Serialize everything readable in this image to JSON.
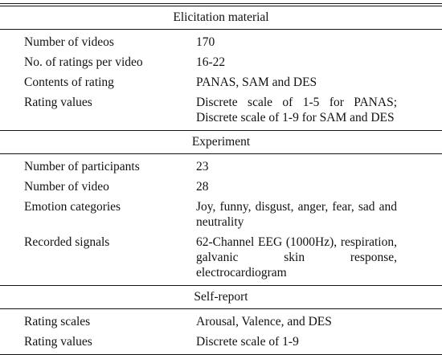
{
  "sections": [
    {
      "title": "Elicitation material",
      "rows": [
        {
          "label": "Number of videos",
          "value": "170"
        },
        {
          "label": "No. of ratings per video",
          "value": "16-22"
        },
        {
          "label": "Contents of rating",
          "value": "PANAS, SAM and DES"
        },
        {
          "label": "Rating values",
          "value": "Discrete scale of 1-5 for PANAS; Discrete scale of 1-9 for SAM and DES"
        }
      ]
    },
    {
      "title": "Experiment",
      "rows": [
        {
          "label": "Number of participants",
          "value": "23"
        },
        {
          "label": "Number of video",
          "value": "28"
        },
        {
          "label": "Emotion categories",
          "value": "Joy, funny, disgust, anger, fear, sad and neutrality"
        },
        {
          "label": "Recorded signals",
          "value": "62-Channel EEG (1000Hz), respiration, galvanic skin response, electrocardiogram"
        }
      ]
    },
    {
      "title": "Self-report",
      "rows": [
        {
          "label": "Rating scales",
          "value": "Arousal, Valence, and DES"
        },
        {
          "label": "Rating values",
          "value": "Discrete scale of 1-9"
        }
      ]
    }
  ]
}
